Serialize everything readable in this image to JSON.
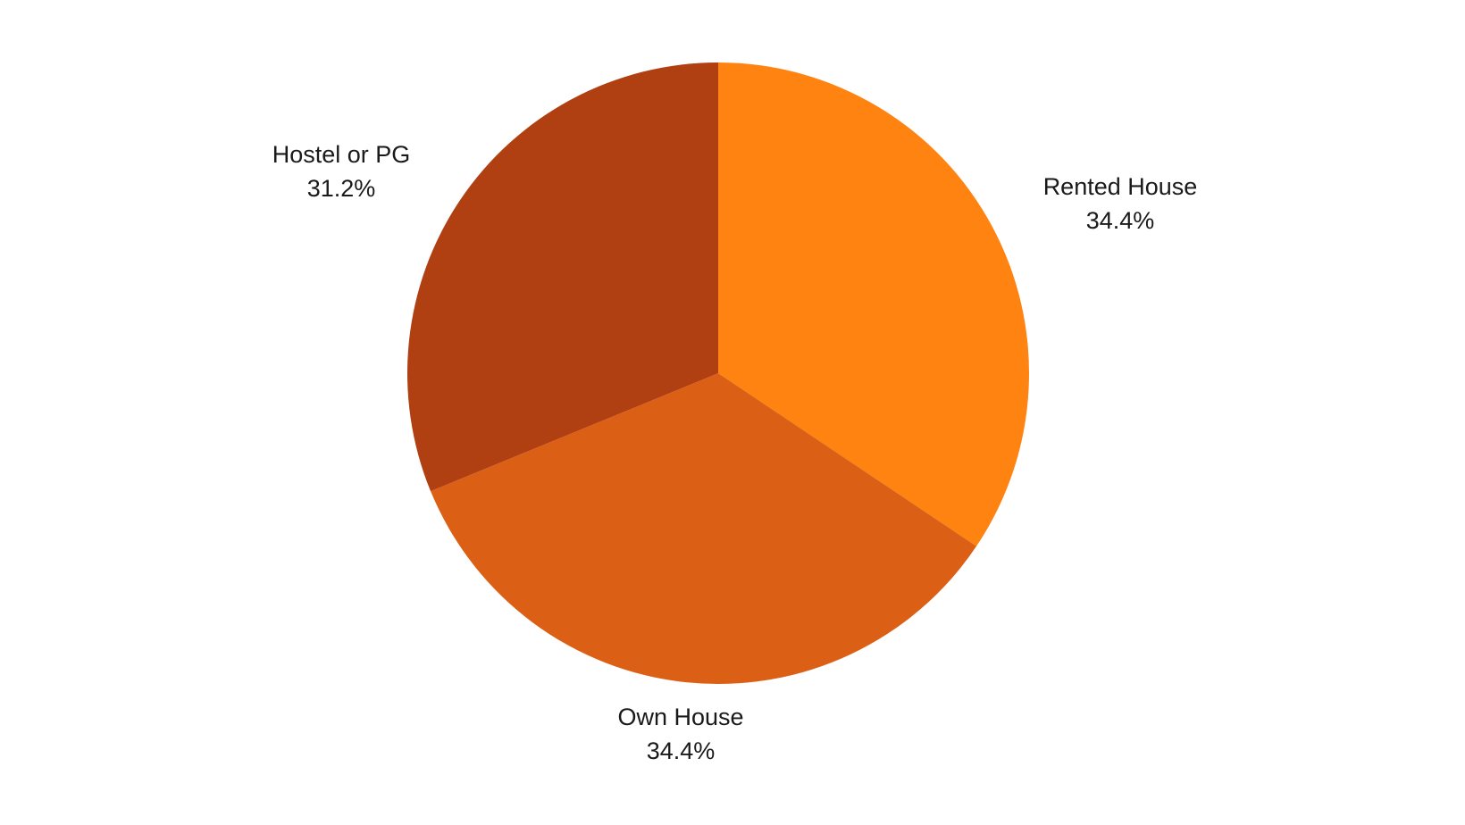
{
  "chart_data": {
    "type": "pie",
    "title": "",
    "start_angle_deg": 0,
    "direction": "clockwise",
    "slices": [
      {
        "label": "Rented House",
        "value": 34.4,
        "value_label": "34.4%",
        "color": "#FF8311"
      },
      {
        "label": "Own House",
        "value": 34.4,
        "value_label": "34.4%",
        "color": "#DB6015"
      },
      {
        "label": "Hostel or PG",
        "value": 31.2,
        "value_label": "31.2%",
        "color": "#B03F12"
      }
    ]
  }
}
